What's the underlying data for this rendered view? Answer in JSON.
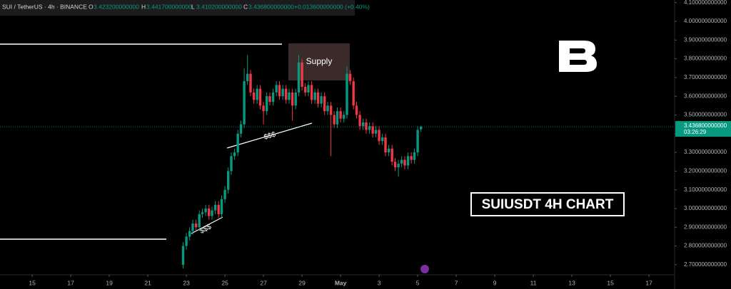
{
  "chart_data": {
    "type": "candlestick",
    "title": "SUI / TetherUS · 4h · BINANCE",
    "ohlc_header": {
      "o_label": "O",
      "o": "3.423200000000",
      "h_label": "H",
      "h": "3.441700000000",
      "l_label": "L",
      "l": "3.410200000000",
      "c_label": "C",
      "c": "3.436800000000",
      "change": "+0.013600000000 (+0.40%)"
    },
    "last_price_label": "3.436800000000",
    "countdown": "03:26:29",
    "annotations": {
      "supply": "Supply",
      "liquidity_upper": "$$$",
      "liquidity_lower": "$$$",
      "caption": "SUIUSDT 4H CHART"
    },
    "x": [
      7.83,
      8,
      8.17,
      8.33,
      8.5,
      8.67,
      8.83,
      9,
      9.17,
      9.33,
      9.5,
      9.67,
      9.83,
      10,
      10.17,
      10.33,
      10.5,
      10.67,
      10.83,
      11,
      11.17,
      11.33,
      11.5,
      11.67,
      11.83,
      12,
      12.17,
      12.33,
      12.5,
      12.67,
      12.83,
      13,
      13.17,
      13.33,
      13.5,
      13.67,
      13.83,
      14,
      14.17,
      14.33,
      14.5,
      14.67,
      14.83,
      15,
      15.17,
      15.33,
      15.5,
      15.67,
      15.83,
      16,
      16.17,
      16.33,
      16.5,
      16.67,
      16.83,
      17,
      17.17,
      17.33,
      17.5,
      17.67,
      17.83,
      18,
      18.17,
      18.33,
      18.5,
      18.67,
      18.83,
      19,
      19.17,
      19.33,
      19.5,
      19.67,
      19.83,
      20,
      20.17
    ],
    "open": [
      2.7,
      2.8,
      2.85,
      2.88,
      2.92,
      2.9,
      2.97,
      2.98,
      3.0,
      2.96,
      2.99,
      3.02,
      2.97,
      3.05,
      3.1,
      3.2,
      3.28,
      3.3,
      3.4,
      3.45,
      3.68,
      3.72,
      3.62,
      3.58,
      3.64,
      3.55,
      3.52,
      3.6,
      3.57,
      3.62,
      3.66,
      3.6,
      3.64,
      3.58,
      3.62,
      3.55,
      3.62,
      3.78,
      3.65,
      3.62,
      3.66,
      3.58,
      3.62,
      3.56,
      3.6,
      3.52,
      3.55,
      3.5,
      3.45,
      3.52,
      3.48,
      3.5,
      3.72,
      3.68,
      3.55,
      3.5,
      3.44,
      3.46,
      3.42,
      3.44,
      3.4,
      3.42,
      3.36,
      3.38,
      3.3,
      3.32,
      3.25,
      3.22,
      3.24,
      3.26,
      3.23,
      3.28,
      3.26,
      3.3,
      3.4232
    ],
    "high": [
      2.82,
      2.87,
      2.9,
      2.94,
      2.94,
      2.99,
      3.0,
      3.02,
      3.02,
      3.01,
      3.04,
      3.04,
      3.07,
      3.12,
      3.22,
      3.3,
      3.32,
      3.42,
      3.47,
      3.75,
      3.82,
      3.74,
      3.64,
      3.66,
      3.66,
      3.57,
      3.62,
      3.62,
      3.64,
      3.68,
      3.68,
      3.66,
      3.66,
      3.64,
      3.64,
      3.64,
      3.82,
      3.8,
      3.67,
      3.68,
      3.68,
      3.64,
      3.64,
      3.62,
      3.62,
      3.57,
      3.57,
      3.52,
      3.54,
      3.54,
      3.52,
      3.76,
      3.74,
      3.7,
      3.57,
      3.52,
      3.48,
      3.48,
      3.46,
      3.46,
      3.44,
      3.44,
      3.4,
      3.4,
      3.34,
      3.34,
      3.27,
      3.26,
      3.28,
      3.28,
      3.3,
      3.3,
      3.32,
      3.44,
      3.4417
    ],
    "low": [
      2.68,
      2.78,
      2.83,
      2.86,
      2.88,
      2.88,
      2.95,
      2.96,
      2.94,
      2.94,
      2.97,
      2.95,
      2.95,
      3.03,
      3.08,
      3.18,
      3.26,
      3.28,
      3.38,
      3.43,
      3.66,
      3.6,
      3.56,
      3.56,
      3.53,
      3.45,
      3.5,
      3.55,
      3.55,
      3.6,
      3.58,
      3.58,
      3.56,
      3.56,
      3.47,
      3.53,
      3.6,
      3.63,
      3.6,
      3.6,
      3.56,
      3.56,
      3.54,
      3.54,
      3.5,
      3.5,
      3.28,
      3.43,
      3.43,
      3.46,
      3.46,
      3.48,
      3.66,
      3.53,
      3.48,
      3.42,
      3.42,
      3.4,
      3.4,
      3.38,
      3.38,
      3.34,
      3.34,
      3.28,
      3.28,
      3.23,
      3.2,
      3.17,
      3.22,
      3.21,
      3.21,
      3.24,
      3.24,
      3.28,
      3.4102
    ],
    "close": [
      2.8,
      2.85,
      2.88,
      2.92,
      2.9,
      2.97,
      2.98,
      3.0,
      2.96,
      2.99,
      3.02,
      2.97,
      3.05,
      3.1,
      3.2,
      3.28,
      3.3,
      3.4,
      3.45,
      3.68,
      3.72,
      3.62,
      3.58,
      3.64,
      3.55,
      3.52,
      3.6,
      3.57,
      3.62,
      3.66,
      3.6,
      3.64,
      3.58,
      3.62,
      3.55,
      3.62,
      3.78,
      3.65,
      3.62,
      3.66,
      3.58,
      3.62,
      3.56,
      3.6,
      3.52,
      3.55,
      3.5,
      3.45,
      3.52,
      3.48,
      3.5,
      3.72,
      3.68,
      3.55,
      3.5,
      3.44,
      3.46,
      3.42,
      3.44,
      3.4,
      3.42,
      3.36,
      3.38,
      3.3,
      3.32,
      3.25,
      3.22,
      3.24,
      3.26,
      3.23,
      3.28,
      3.26,
      3.3,
      3.42,
      3.4368
    ],
    "up_color": "#089981",
    "down_color": "#f23645",
    "xlim": [
      -1.67,
      33.33
    ],
    "xticks": [
      {
        "value": 0,
        "label": "15"
      },
      {
        "value": 2,
        "label": "17"
      },
      {
        "value": 4,
        "label": "19"
      },
      {
        "value": 6,
        "label": "21"
      },
      {
        "value": 8,
        "label": "23"
      },
      {
        "value": 10,
        "label": "25"
      },
      {
        "value": 12,
        "label": "27"
      },
      {
        "value": 14,
        "label": "29"
      },
      {
        "value": 16,
        "label": "May"
      },
      {
        "value": 18,
        "label": "3"
      },
      {
        "value": 20,
        "label": "5"
      },
      {
        "value": 22,
        "label": "7"
      },
      {
        "value": 24,
        "label": "9"
      },
      {
        "value": 26,
        "label": "11"
      },
      {
        "value": 28,
        "label": "13"
      },
      {
        "value": 30,
        "label": "15"
      },
      {
        "value": 32,
        "label": "17"
      }
    ],
    "ylim": [
      2.65,
      4.114
    ],
    "yticks": [
      {
        "value": 4.1,
        "label": "4.100000000000"
      },
      {
        "value": 4.0,
        "label": "4.000000000000"
      },
      {
        "value": 3.9,
        "label": "3.900000000000"
      },
      {
        "value": 3.8,
        "label": "3.800000000000"
      },
      {
        "value": 3.7,
        "label": "3.700000000000"
      },
      {
        "value": 3.6,
        "label": "3.600000000000"
      },
      {
        "value": 3.5,
        "label": "3.500000000000"
      },
      {
        "value": 3.4,
        "label": "3.400000000000"
      },
      {
        "value": 3.3,
        "label": "3.300000000000"
      },
      {
        "value": 3.2,
        "label": "3.200000000000"
      },
      {
        "value": 3.1,
        "label": "3.100000000000"
      },
      {
        "value": 3.0,
        "label": "3.000000000000"
      },
      {
        "value": 2.9,
        "label": "2.900000000000"
      },
      {
        "value": 2.8,
        "label": "2.800000000000"
      },
      {
        "value": 2.7,
        "label": "2.700000000000"
      }
    ],
    "grid": false
  }
}
